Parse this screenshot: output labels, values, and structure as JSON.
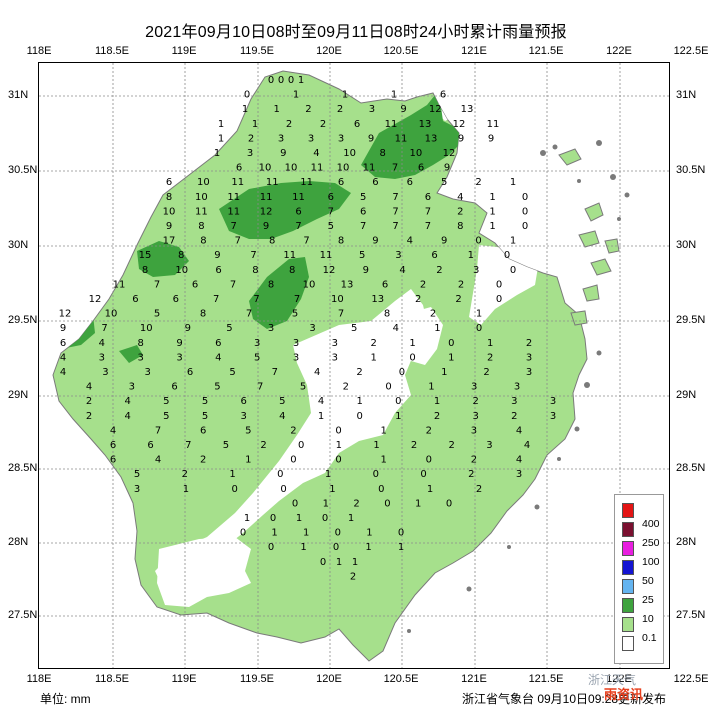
{
  "title": "2021年09月10日08时至09月11日08时24小时累计雨量预报",
  "axes": {
    "lon_labels": [
      "118E",
      "118.5E",
      "119E",
      "119.5E",
      "120E",
      "120.5E",
      "121E",
      "121.5E",
      "122E",
      "122.5E"
    ],
    "lat_labels": [
      "31N",
      "30.5N",
      "30N",
      "29.5N",
      "29N",
      "28.5N",
      "28N",
      "27.5N"
    ]
  },
  "legend": {
    "levels": [
      {
        "label": "400",
        "color": "#e31414"
      },
      {
        "label": "250",
        "color": "#7a1030"
      },
      {
        "label": "100",
        "color": "#e81ee0"
      },
      {
        "label": "50",
        "color": "#1414d2"
      },
      {
        "label": "25",
        "color": "#64b4f0"
      },
      {
        "label": "10",
        "color": "#3ea33e"
      },
      {
        "label": "0.1",
        "color": "#a6e08c"
      },
      {
        "label": "",
        "color": "#ffffff"
      }
    ]
  },
  "footer": {
    "unit": "单位: mm",
    "source": "浙江省气象台 09月10日09:28更新发布"
  },
  "watermark": {
    "line1": "浙江天气",
    "line2": "雨资讯"
  },
  "colors": {
    "land_light": "#a6e08c",
    "land_dry": "#ffffff",
    "heavy_rain": "#3ea33e",
    "coast": "#707070"
  },
  "station_values": [
    [
      "0",
      "0",
      "0",
      "1"
    ],
    [
      "0",
      "1",
      "1",
      "1",
      "6"
    ],
    [
      "1",
      "1",
      "2",
      "2",
      "3",
      "9",
      "12",
      "13"
    ],
    [
      "1",
      "1",
      "2",
      "2",
      "6",
      "11",
      "13",
      "12",
      "11"
    ],
    [
      "1",
      "2",
      "3",
      "3",
      "3",
      "9",
      "11",
      "13",
      "9",
      "9"
    ],
    [
      "1",
      "3",
      "9",
      "4",
      "10",
      "8",
      "10",
      "12"
    ],
    [
      "6",
      "10",
      "10",
      "11",
      "10",
      "11",
      "7",
      "6",
      "9"
    ],
    [
      "6",
      "10",
      "11",
      "11",
      "11",
      "6",
      "6",
      "6",
      "5",
      "2",
      "1"
    ],
    [
      "8",
      "10",
      "11",
      "11",
      "11",
      "6",
      "5",
      "7",
      "6",
      "4",
      "1",
      "0"
    ],
    [
      "10",
      "11",
      "11",
      "12",
      "6",
      "7",
      "6",
      "7",
      "7",
      "2",
      "1",
      "0"
    ],
    [
      "9",
      "8",
      "7",
      "9",
      "7",
      "5",
      "7",
      "7",
      "7",
      "8",
      "1",
      "0"
    ],
    [
      "17",
      "8",
      "7",
      "8",
      "7",
      "8",
      "9",
      "4",
      "9",
      "0",
      "1"
    ],
    [
      "15",
      "8",
      "9",
      "7",
      "11",
      "11",
      "5",
      "3",
      "6",
      "1",
      "0"
    ],
    [
      "8",
      "10",
      "6",
      "8",
      "8",
      "12",
      "9",
      "4",
      "2",
      "3",
      "0"
    ],
    [
      "11",
      "7",
      "6",
      "7",
      "8",
      "10",
      "13",
      "6",
      "2",
      "2",
      "0"
    ],
    [
      "12",
      "6",
      "6",
      "7",
      "7",
      "7",
      "10",
      "13",
      "2",
      "2",
      "0"
    ],
    [
      "12",
      "10",
      "5",
      "8",
      "7",
      "5",
      "7",
      "8",
      "2",
      "1"
    ],
    [
      "9",
      "7",
      "10",
      "9",
      "5",
      "3",
      "3",
      "5",
      "4",
      "1",
      "0"
    ],
    [
      "6",
      "4",
      "8",
      "9",
      "6",
      "3",
      "3",
      "3",
      "2",
      "1",
      "0",
      "1",
      "2"
    ],
    [
      "4",
      "3",
      "3",
      "3",
      "4",
      "5",
      "3",
      "3",
      "1",
      "0",
      "1",
      "2",
      "3"
    ],
    [
      "4",
      "3",
      "3",
      "6",
      "5",
      "7",
      "4",
      "2",
      "0",
      "1",
      "2",
      "3"
    ],
    [
      "4",
      "3",
      "6",
      "5",
      "7",
      "5",
      "2",
      "0",
      "1",
      "3",
      "3"
    ],
    [
      "2",
      "4",
      "5",
      "5",
      "6",
      "5",
      "4",
      "1",
      "0",
      "1",
      "2",
      "3",
      "3"
    ],
    [
      "2",
      "4",
      "5",
      "5",
      "3",
      "4",
      "1",
      "0",
      "1",
      "2",
      "3",
      "2",
      "3"
    ],
    [
      "4",
      "7",
      "6",
      "5",
      "2",
      "0",
      "1",
      "2",
      "3",
      "4"
    ],
    [
      "6",
      "6",
      "7",
      "5",
      "2",
      "0",
      "1",
      "1",
      "2",
      "2",
      "3",
      "4"
    ],
    [
      "6",
      "4",
      "2",
      "1",
      "0",
      "0",
      "1",
      "0",
      "2",
      "4"
    ],
    [
      "5",
      "2",
      "1",
      "0",
      "1",
      "0",
      "0",
      "2",
      "3"
    ],
    [
      "3",
      "1",
      "0",
      "0",
      "1",
      "0",
      "1",
      "2"
    ],
    [
      "0",
      "1",
      "2",
      "0",
      "1",
      "0"
    ],
    [
      "1",
      "0",
      "1",
      "0",
      "1"
    ],
    [
      "0",
      "1",
      "1",
      "0",
      "1",
      "0"
    ],
    [
      "0",
      "1",
      "0",
      "1",
      "1"
    ],
    [
      "0",
      "1",
      "1"
    ],
    [
      "2"
    ]
  ]
}
